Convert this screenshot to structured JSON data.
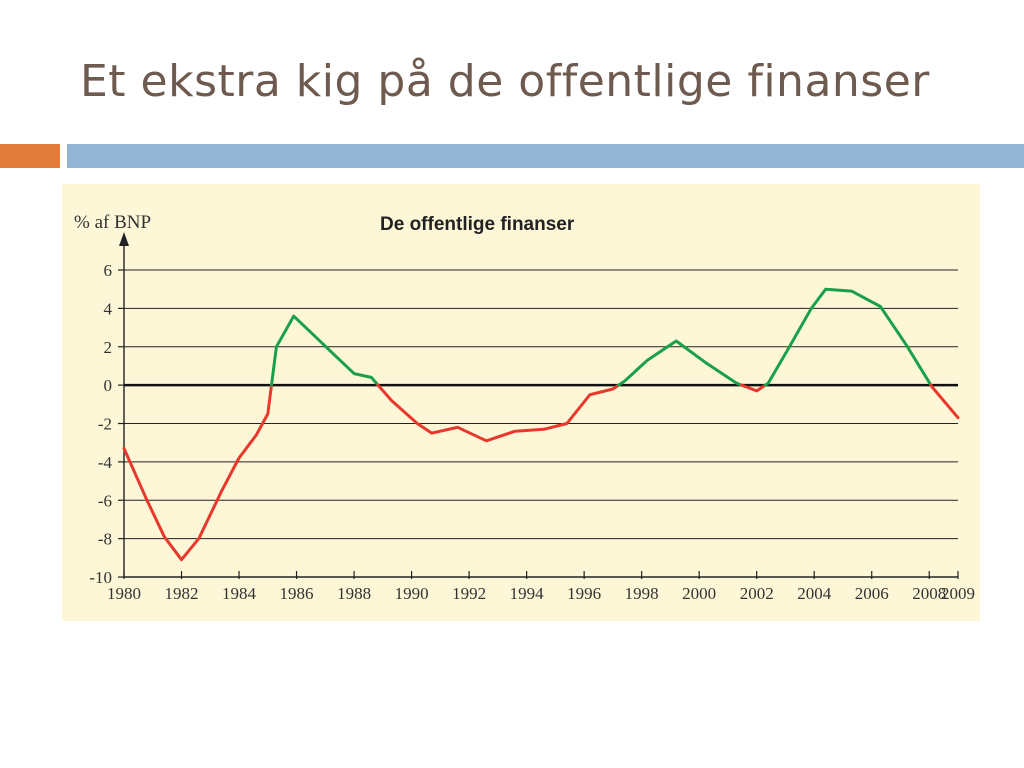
{
  "slide": {
    "title": "Et ekstra kig på de offentlige finanser"
  },
  "colors": {
    "title": "#6e5a4e",
    "accent_orange": "#e07b39",
    "accent_blue": "#93b5d5",
    "panel_background": "#fdf7d8",
    "surplus_line": "#1aa04a",
    "deficit_line": "#e8382c",
    "gridline": "#222222"
  },
  "chart_data": {
    "type": "line",
    "title": "De offentlige finanser",
    "ylabel": "% af BNP",
    "xlabel": "",
    "xlim": [
      1980,
      2009
    ],
    "ylim": [
      -10,
      6
    ],
    "grid": true,
    "zero_line": true,
    "x_ticks": [
      1980,
      1982,
      1984,
      1986,
      1988,
      1990,
      1992,
      1994,
      1996,
      1998,
      2000,
      2002,
      2004,
      2006,
      2008,
      2009
    ],
    "x_tick_labels": [
      "1980",
      "1982",
      "1984",
      "1986",
      "1988",
      "1990",
      "1992",
      "1994",
      "1996",
      "1998",
      "2000",
      "2002",
      "2004",
      "2006",
      "2008",
      "2009"
    ],
    "y_ticks": [
      6,
      4,
      2,
      0,
      -2,
      -4,
      -6,
      -8,
      -10
    ],
    "y_tick_labels": [
      "6",
      "4",
      "2",
      "0",
      "-2",
      "-4",
      "-6",
      "-8",
      "-10"
    ],
    "color_rule": "green when value is positive, red when value is negative",
    "series": [
      {
        "x": [
          1980,
          1980.8,
          1981.4,
          1982,
          1982.6,
          1983.4,
          1984,
          1984.6,
          1985,
          1985.3,
          1985.9,
          1986.6,
          1987.3,
          1988,
          1988.6,
          1989.3,
          1990.2,
          1990.7,
          1991.6,
          1992.6,
          1993.6,
          1994.6,
          1995.4,
          1996.2,
          1997,
          1997.4,
          1998.2,
          1999.2,
          2000.2,
          2001.3,
          2002,
          2002.4,
          2003.1,
          2003.9,
          2004.4,
          2005.3,
          2006.3,
          2007.2,
          2008.1,
          2009
        ],
        "values": [
          -3.3,
          -6.0,
          -7.9,
          -9.1,
          -8.0,
          -5.5,
          -3.8,
          -2.6,
          -1.5,
          2.0,
          3.6,
          2.6,
          1.6,
          0.6,
          0.4,
          -0.8,
          -2.0,
          -2.5,
          -2.2,
          -2.9,
          -2.4,
          -2.3,
          -2.0,
          -0.5,
          -0.2,
          0.2,
          1.3,
          2.3,
          1.2,
          0.1,
          -0.3,
          0.1,
          1.9,
          4.0,
          5.0,
          4.9,
          4.1,
          2.1,
          -0.1,
          -1.7
        ]
      }
    ]
  }
}
